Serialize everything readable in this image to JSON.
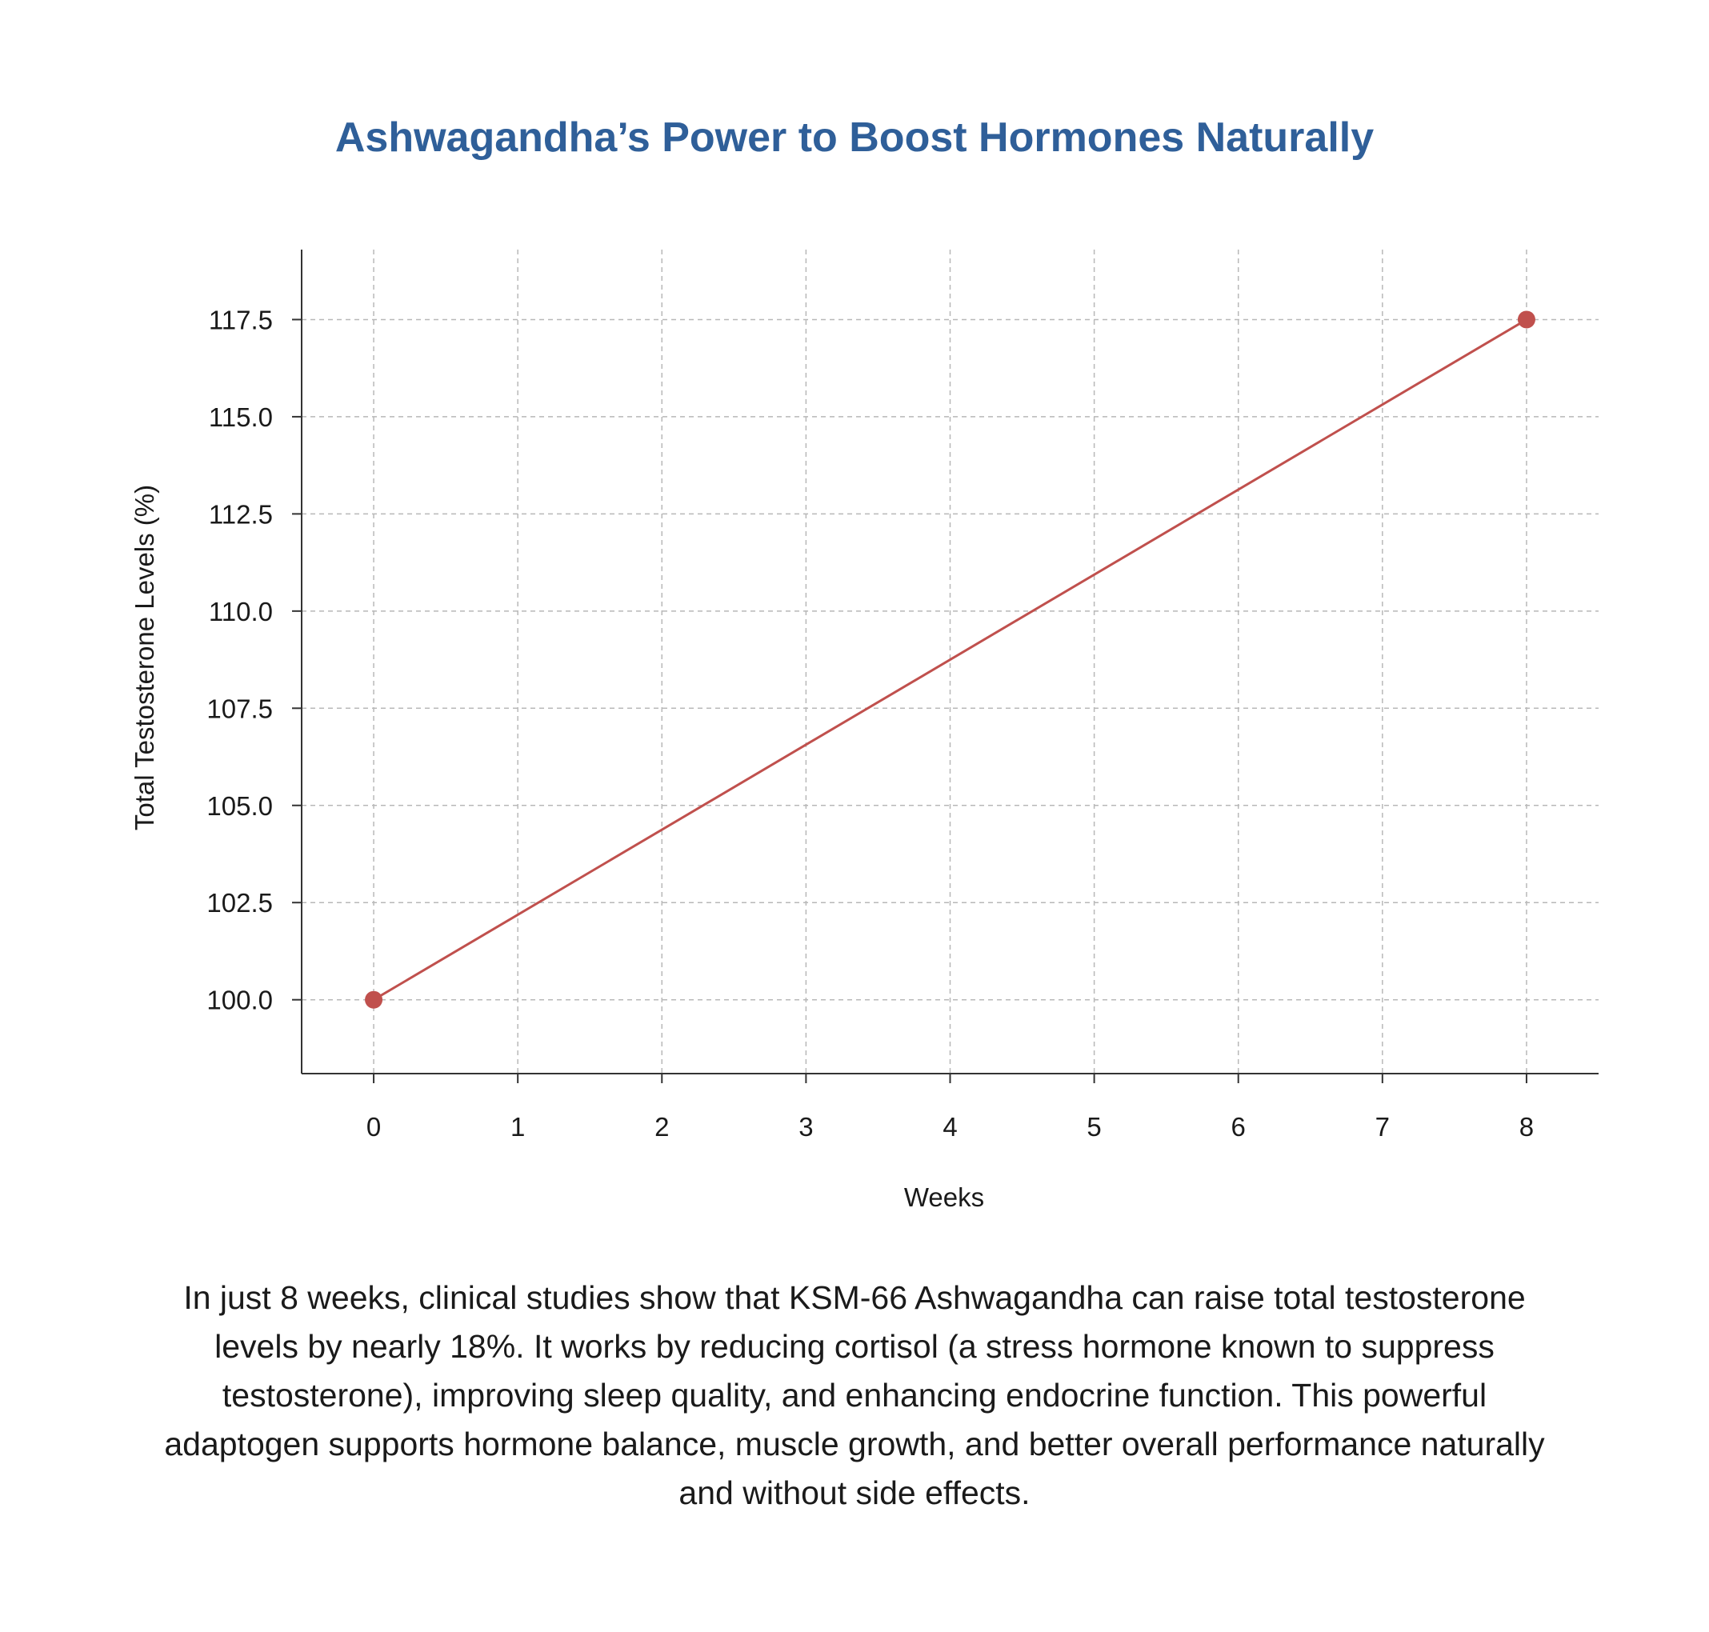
{
  "chart_data": {
    "type": "line",
    "title": "Ashwagandha’s Power to Boost Hormones Naturally",
    "xlabel": "Weeks",
    "ylabel": "Total Testosterone Levels (%)",
    "x_ticks": [
      "0",
      "1",
      "2",
      "3",
      "4",
      "5",
      "6",
      "7",
      "8"
    ],
    "y_ticks": [
      "100.0",
      "102.5",
      "105.0",
      "107.5",
      "110.0",
      "112.5",
      "115.0",
      "117.5"
    ],
    "xlim": [
      -0.5,
      8.5
    ],
    "ylim": [
      98.1,
      119.3
    ],
    "grid": true,
    "series": [
      {
        "x": [
          0,
          8
        ],
        "y": [
          100.0,
          117.5
        ],
        "color": "#c0504d"
      }
    ]
  },
  "caption": "In just 8 weeks, clinical studies show that KSM-66 Ashwagandha can raise total testosterone levels by nearly 18%. It works by reducing cortisol (a stress hormone known to suppress testosterone), improving sleep quality, and enhancing endocrine function. This powerful adaptogen supports hormone balance, muscle growth, and better overall performance naturally and without side effects."
}
